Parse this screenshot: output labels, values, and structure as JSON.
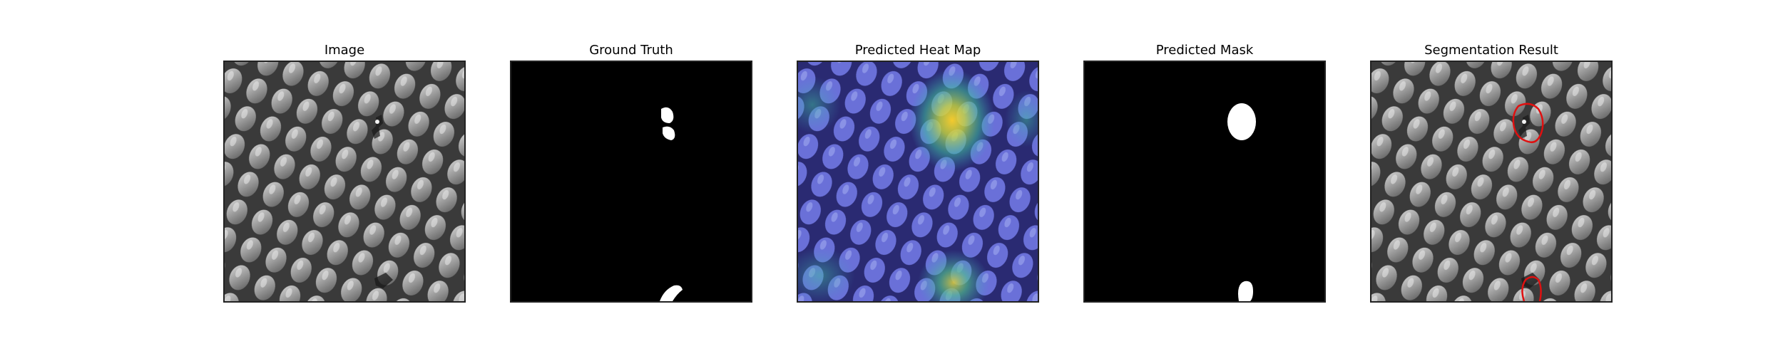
{
  "figure": {
    "panels": [
      {
        "id": "image",
        "title": "Image"
      },
      {
        "id": "ground-truth",
        "title": "Ground Truth"
      },
      {
        "id": "heat-map",
        "title": "Predicted Heat Map"
      },
      {
        "id": "mask",
        "title": "Predicted Mask"
      },
      {
        "id": "segmentation",
        "title": "Segmentation Result"
      }
    ]
  },
  "colors": {
    "background": "#ffffff",
    "texture_light": "#b0b0b0",
    "texture_dark": "#3a3a3a",
    "mask_fg": "#ffffff",
    "mask_bg": "#000000",
    "contour": "#e01010",
    "heat_low": "#3c3cc8",
    "heat_high": "#ffdc32"
  }
}
